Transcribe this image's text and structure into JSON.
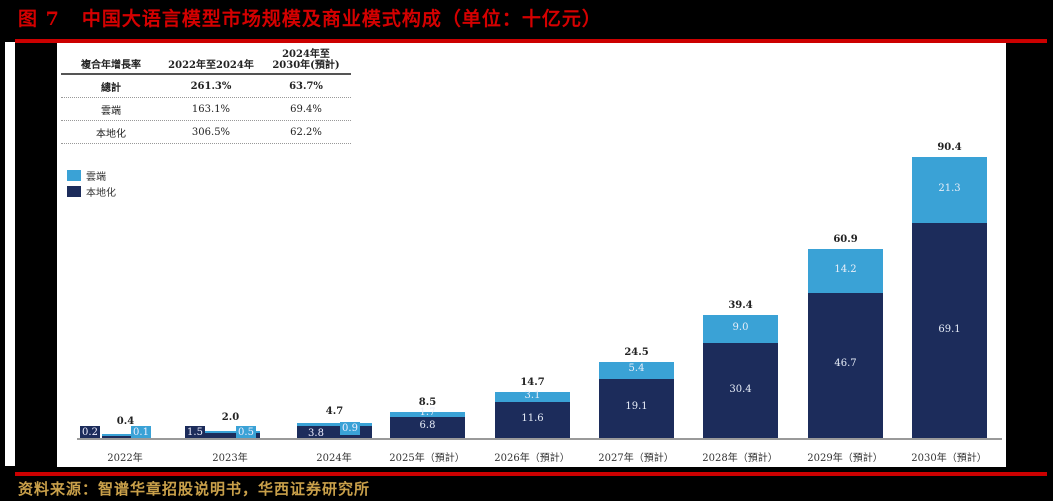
{
  "figure": {
    "number": "图 7",
    "title": "中国大语言模型市场规模及商业模式构成（单位：十亿元）",
    "source": "资料来源：智谱华章招股说明书，华西证券研究所"
  },
  "cagr_table": {
    "headers": [
      "複合年增長率",
      "2022年至2024年",
      "2024年至\n2030年(預計)"
    ],
    "header_line1": "2024年至",
    "header_line2": "2030年(預計)",
    "rows": [
      {
        "label": "總計",
        "v1": "261.3%",
        "v2": "63.7%"
      },
      {
        "label": "雲端",
        "v1": "163.1%",
        "v2": "69.4%"
      },
      {
        "label": "本地化",
        "v1": "306.5%",
        "v2": "62.2%"
      }
    ]
  },
  "legend": [
    {
      "label": "雲端",
      "color": "#3aa2d6"
    },
    {
      "label": "本地化",
      "color": "#1c2c5b"
    }
  ],
  "chart_data": {
    "type": "bar",
    "stacked": true,
    "title": "中国大语言模型市场规模及商业模式构成（单位：十亿元）",
    "xlabel": "",
    "ylabel": "十亿元",
    "categories": [
      "2022年",
      "2023年",
      "2024年",
      "2025年（預計）",
      "2026年（預計）",
      "2027年（預計）",
      "2028年（預計）",
      "2029年（預計）",
      "2030年（預計）"
    ],
    "series": [
      {
        "name": "本地化",
        "color": "#1c2c5b",
        "values": [
          0.2,
          1.5,
          3.8,
          6.8,
          11.6,
          19.1,
          30.4,
          46.7,
          69.1
        ]
      },
      {
        "name": "雲端",
        "color": "#3aa2d6",
        "values": [
          0.1,
          0.5,
          0.9,
          1.7,
          3.1,
          5.4,
          9.0,
          14.2,
          21.3
        ]
      }
    ],
    "totals": [
      "0.4",
      "2.0",
      "4.7",
      "8.5",
      "14.7",
      "24.5",
      "39.4",
      "60.9",
      "90.4"
    ],
    "local_labels": [
      "0.2",
      "1.5",
      "3.8",
      "6.8",
      "11.6",
      "19.1",
      "30.4",
      "46.7",
      "69.1"
    ],
    "cloud_labels": [
      "0.1",
      "0.5",
      "0.9",
      "1.7",
      "3.1",
      "5.4",
      "9.0",
      "14.2",
      "21.3"
    ],
    "grid": false,
    "legend_position": "upper-left"
  }
}
